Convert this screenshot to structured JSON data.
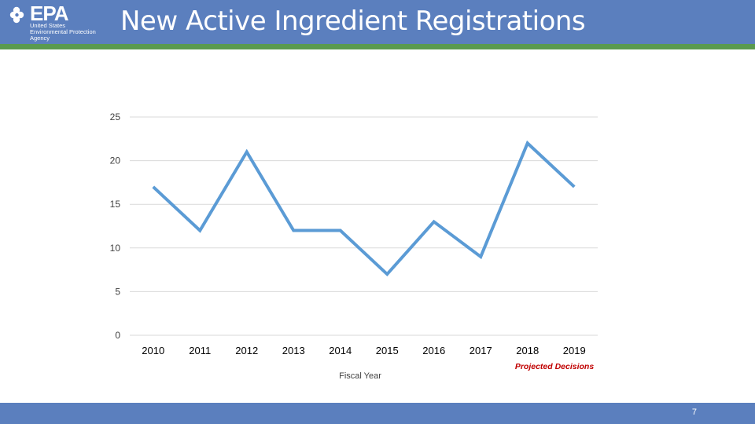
{
  "header": {
    "title": "New Active Ingredient Registrations",
    "logo": {
      "name": "EPA",
      "lines": [
        "United States",
        "Environmental Protection",
        "Agency"
      ],
      "icon": "epa-flower-icon"
    },
    "color": "#5b7fbe",
    "stripe_color": "#5a9a4f"
  },
  "footer": {
    "page_number": "7",
    "color": "#5b7fbe"
  },
  "chart_data": {
    "type": "line",
    "categories": [
      "2010",
      "2011",
      "2012",
      "2013",
      "2014",
      "2015",
      "2016",
      "2017",
      "2018",
      "2019"
    ],
    "series": [
      {
        "values": [
          17,
          12,
          21,
          12,
          12,
          7,
          13,
          9,
          22,
          17
        ],
        "color": "#5b9bd5"
      }
    ],
    "title": "",
    "xlabel": "Fiscal Year",
    "ylabel": "",
    "ylim": [
      0,
      25
    ],
    "yticks": [
      "0",
      "5",
      "10",
      "15",
      "20",
      "25"
    ],
    "grid": true,
    "annotation": "Projected Decisions"
  }
}
